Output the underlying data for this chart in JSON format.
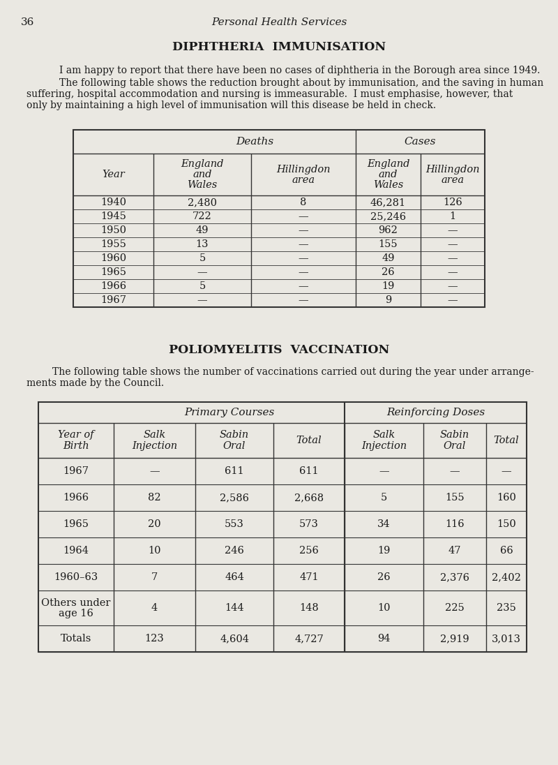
{
  "page_number": "36",
  "page_header": "Personal Health Services",
  "background_color": "#eae8e2",
  "text_color": "#1a1a1a",
  "section1_title": "DIPHTHERIA  IMMUNISATION",
  "section1_para1": "I am happy to report that there have been no cases of diphtheria in the Borough area since 1949.",
  "section1_para2_lines": [
    "The following table shows the reduction brought about by immunisation, and the saving in human",
    "suffering, hospital accommodation and nursing is immeasurable.  I must emphasise, however, that",
    "only by maintaining a high level of immunisation will this disease be held in check."
  ],
  "table1_rows": [
    [
      "1940",
      "2,480",
      "8",
      "46,281",
      "126"
    ],
    [
      "1945",
      "722",
      "—",
      "25,246",
      "1"
    ],
    [
      "1950",
      "49",
      "—",
      "962",
      "—"
    ],
    [
      "1955",
      "13",
      "—",
      "155",
      "—"
    ],
    [
      "1960",
      "5",
      "—",
      "49",
      "—"
    ],
    [
      "1965",
      "—",
      "—",
      "26",
      "—"
    ],
    [
      "1966",
      "5",
      "—",
      "19",
      "—"
    ],
    [
      "1967",
      "—",
      "—",
      "9",
      "—"
    ]
  ],
  "section2_title": "POLIOMYELITIS  VACCINATION",
  "section2_para_lines": [
    "The following table shows the number of vaccinations carried out during the year under arrange-",
    "ments made by the Council."
  ],
  "table2_rows": [
    [
      "1967",
      "—",
      "611",
      "611",
      "—",
      "—",
      "—"
    ],
    [
      "1966",
      "82",
      "2,586",
      "2,668",
      "5",
      "155",
      "160"
    ],
    [
      "1965",
      "20",
      "553",
      "573",
      "34",
      "116",
      "150"
    ],
    [
      "1964",
      "10",
      "246",
      "256",
      "19",
      "47",
      "66"
    ],
    [
      "1960–63",
      "7",
      "464",
      "471",
      "26",
      "2,376",
      "2,402"
    ],
    [
      "Others under\nage 16",
      "4",
      "144",
      "148",
      "10",
      "225",
      "235"
    ],
    [
      "Totals",
      "123",
      "4,604",
      "4,727",
      "94",
      "2,919",
      "3,013"
    ]
  ]
}
